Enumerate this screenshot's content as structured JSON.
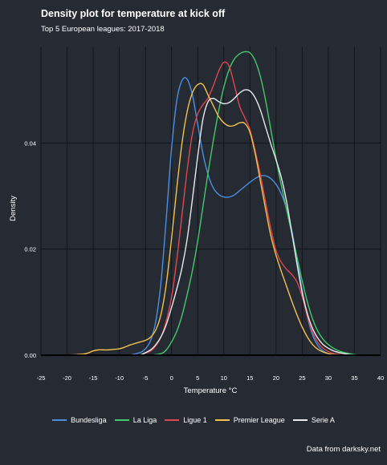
{
  "header": {
    "title": "Density plot for temperature at kick off",
    "subtitle": "Top 5 European leagues: 2017-2018"
  },
  "caption": "Data from darksky.net",
  "colors": {
    "background": "#262a33",
    "grid": "#0f1115",
    "text": "#ffffff"
  },
  "chart_data": {
    "type": "line",
    "title": "Density plot for temperature at kick off",
    "subtitle": "Top 5 European leagues: 2017-2018",
    "xlabel": "Temperature °C",
    "ylabel": "Density",
    "xlim": [
      -25,
      40
    ],
    "ylim": [
      0,
      0.06
    ],
    "x_ticks": [
      -25,
      -20,
      -15,
      -10,
      -5,
      0,
      5,
      10,
      15,
      20,
      25,
      30,
      35,
      40
    ],
    "x_tick_labels": [
      "-25",
      "-20",
      "-15",
      "-10",
      "-5",
      "0",
      "5",
      "10",
      "15",
      "20",
      "25",
      "30",
      "35",
      "40"
    ],
    "y_ticks": [
      0,
      0.02,
      0.04
    ],
    "y_tick_labels": [
      "0.00",
      "0.02",
      "0.04"
    ],
    "grid": true,
    "legend_position": "bottom",
    "series": [
      {
        "name": "Bundesliga",
        "color": "#4b8fe2",
        "x": [
          -8,
          -6,
          -5,
          -4,
          -3,
          -2,
          -1,
          0,
          1,
          2,
          3,
          4,
          5,
          6,
          7,
          8,
          9,
          10,
          11,
          12,
          13,
          14,
          15,
          16,
          17,
          18,
          19,
          20,
          21,
          22,
          23,
          24,
          25,
          26,
          27,
          28,
          29,
          30,
          31,
          32,
          33
        ],
        "y": [
          0.0,
          0.0005,
          0.0012,
          0.0028,
          0.0065,
          0.014,
          0.026,
          0.039,
          0.048,
          0.0518,
          0.052,
          0.049,
          0.0435,
          0.038,
          0.034,
          0.0315,
          0.0303,
          0.0298,
          0.0298,
          0.0302,
          0.031,
          0.0318,
          0.0326,
          0.0333,
          0.0338,
          0.0338,
          0.0333,
          0.0322,
          0.0304,
          0.0276,
          0.0235,
          0.0182,
          0.0122,
          0.0072,
          0.0038,
          0.0018,
          0.0008,
          0.0003,
          0.0001,
          0.0,
          0.0
        ]
      },
      {
        "name": "La Liga",
        "color": "#43c86a",
        "x": [
          -4,
          -2,
          -1,
          0,
          1,
          2,
          3,
          4,
          5,
          6,
          7,
          8,
          9,
          10,
          11,
          12,
          13,
          14,
          15,
          16,
          17,
          18,
          19,
          20,
          21,
          22,
          23,
          24,
          25,
          26,
          27,
          28,
          29,
          30,
          31,
          32,
          33,
          34,
          35,
          36,
          37
        ],
        "y": [
          0.0,
          0.0003,
          0.001,
          0.0025,
          0.0045,
          0.0075,
          0.0115,
          0.016,
          0.0215,
          0.028,
          0.0345,
          0.0405,
          0.046,
          0.0505,
          0.0538,
          0.0558,
          0.0568,
          0.0572,
          0.057,
          0.0555,
          0.0525,
          0.048,
          0.0425,
          0.037,
          0.032,
          0.0275,
          0.023,
          0.0185,
          0.014,
          0.01,
          0.0068,
          0.0045,
          0.003,
          0.002,
          0.0013,
          0.0008,
          0.0005,
          0.0003,
          0.0001,
          0.0,
          0.0
        ]
      },
      {
        "name": "Ligue 1",
        "color": "#e0464e",
        "x": [
          -6,
          -4,
          -3,
          -2,
          -1,
          0,
          1,
          2,
          3,
          4,
          5,
          6,
          7,
          8,
          9,
          10,
          11,
          12,
          13,
          14,
          15,
          16,
          17,
          18,
          19,
          20,
          21,
          22,
          23,
          24,
          25,
          26,
          27,
          28,
          29,
          30,
          31,
          32,
          34
        ],
        "y": [
          0.0,
          0.0008,
          0.0018,
          0.0035,
          0.0065,
          0.011,
          0.018,
          0.0265,
          0.035,
          0.0418,
          0.0455,
          0.0472,
          0.0485,
          0.0508,
          0.0535,
          0.0552,
          0.0545,
          0.051,
          0.047,
          0.0448,
          0.0425,
          0.0385,
          0.034,
          0.0288,
          0.0238,
          0.0197,
          0.0175,
          0.0162,
          0.0152,
          0.0138,
          0.011,
          0.0073,
          0.0043,
          0.0024,
          0.0013,
          0.0007,
          0.0003,
          0.0001,
          0.0
        ]
      },
      {
        "name": "Premier League",
        "color": "#f2c14e",
        "x": [
          -20,
          -17,
          -16,
          -15,
          -14,
          -13,
          -12,
          -11,
          -10,
          -9,
          -8,
          -7,
          -6,
          -5,
          -4,
          -3,
          -2,
          -1,
          0,
          1,
          2,
          3,
          4,
          5,
          6,
          7,
          8,
          9,
          10,
          11,
          12,
          13,
          14,
          15,
          16,
          17,
          18,
          19,
          20,
          21,
          22,
          23,
          24,
          25,
          26,
          27,
          28,
          29,
          30,
          31,
          32,
          33
        ],
        "y": [
          0.0,
          0.0002,
          0.0004,
          0.0008,
          0.001,
          0.001,
          0.001,
          0.0011,
          0.0012,
          0.0015,
          0.0019,
          0.0022,
          0.0025,
          0.0028,
          0.0034,
          0.0048,
          0.0078,
          0.0135,
          0.022,
          0.0315,
          0.04,
          0.046,
          0.0495,
          0.051,
          0.051,
          0.049,
          0.047,
          0.045,
          0.0438,
          0.0432,
          0.0433,
          0.0438,
          0.0437,
          0.042,
          0.038,
          0.0328,
          0.0275,
          0.0225,
          0.0188,
          0.0158,
          0.013,
          0.0102,
          0.0076,
          0.0053,
          0.0034,
          0.002,
          0.0011,
          0.0006,
          0.0003,
          0.0001,
          0.0001,
          0.0
        ]
      },
      {
        "name": "Serie A",
        "color": "#e8e8ee",
        "x": [
          -6,
          -4,
          -3,
          -2,
          -1,
          0,
          1,
          2,
          3,
          4,
          5,
          6,
          7,
          8,
          9,
          10,
          11,
          12,
          13,
          14,
          15,
          16,
          17,
          18,
          19,
          20,
          21,
          22,
          23,
          24,
          25,
          26,
          27,
          28,
          29,
          30,
          31,
          32,
          33,
          34,
          35,
          36
        ],
        "y": [
          0.0,
          0.001,
          0.002,
          0.0035,
          0.0058,
          0.009,
          0.0125,
          0.0165,
          0.022,
          0.0295,
          0.0375,
          0.0445,
          0.0478,
          0.0484,
          0.0478,
          0.0474,
          0.0476,
          0.0484,
          0.0494,
          0.05,
          0.0498,
          0.0485,
          0.0462,
          0.043,
          0.0398,
          0.0368,
          0.0335,
          0.029,
          0.0232,
          0.0172,
          0.0118,
          0.0078,
          0.005,
          0.0032,
          0.002,
          0.0013,
          0.0008,
          0.0005,
          0.0003,
          0.0001,
          0.0,
          0.0
        ]
      }
    ]
  }
}
